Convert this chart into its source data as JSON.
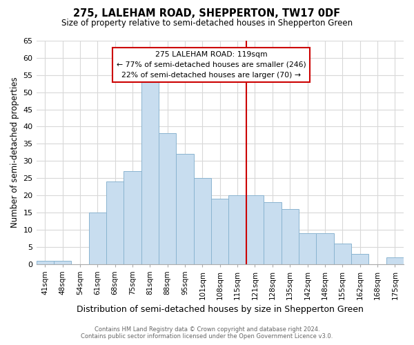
{
  "title": "275, LALEHAM ROAD, SHEPPERTON, TW17 0DF",
  "subtitle": "Size of property relative to semi-detached houses in Shepperton Green",
  "xlabel": "Distribution of semi-detached houses by size in Shepperton Green",
  "ylabel": "Number of semi-detached properties",
  "footer_line1": "Contains HM Land Registry data © Crown copyright and database right 2024.",
  "footer_line2": "Contains public sector information licensed under the Open Government Licence v3.0.",
  "bin_labels": [
    "41sqm",
    "48sqm",
    "54sqm",
    "61sqm",
    "68sqm",
    "75sqm",
    "81sqm",
    "88sqm",
    "95sqm",
    "101sqm",
    "108sqm",
    "115sqm",
    "121sqm",
    "128sqm",
    "135sqm",
    "142sqm",
    "148sqm",
    "155sqm",
    "162sqm",
    "168sqm",
    "175sqm"
  ],
  "bar_heights": [
    1,
    1,
    0,
    15,
    24,
    27,
    53,
    38,
    32,
    25,
    19,
    20,
    20,
    18,
    16,
    9,
    9,
    6,
    3,
    0,
    2
  ],
  "bar_color": "#c8ddef",
  "bar_edge_color": "#8ab4d0",
  "grid_color": "#d8d8d8",
  "property_line_idx": 12,
  "property_label": "275 LALEHAM ROAD: 119sqm",
  "annotation_smaller": "← 77% of semi-detached houses are smaller (246)",
  "annotation_larger": "22% of semi-detached houses are larger (70) →",
  "annotation_box_color": "#ffffff",
  "annotation_box_edge": "#cc0000",
  "vline_color": "#cc0000",
  "ylim": [
    0,
    65
  ],
  "yticks": [
    0,
    5,
    10,
    15,
    20,
    25,
    30,
    35,
    40,
    45,
    50,
    55,
    60,
    65
  ],
  "background_color": "#ffffff"
}
